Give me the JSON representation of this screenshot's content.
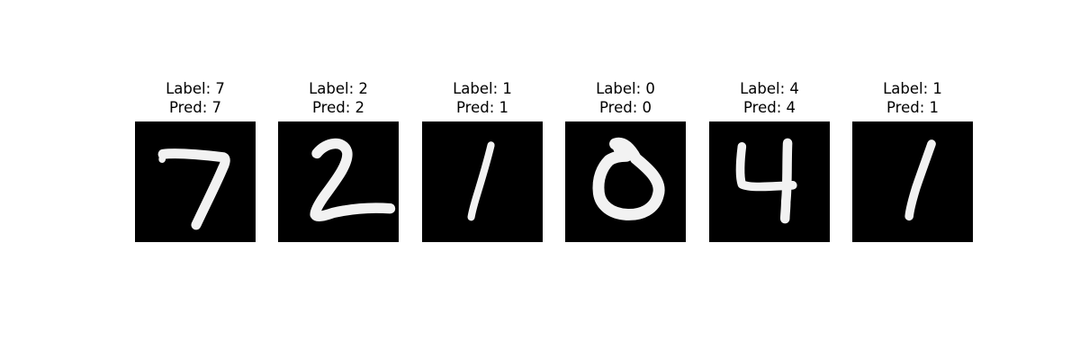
{
  "panels": [
    {
      "label_text": "Label: 7",
      "pred_text": "Pred: 7",
      "digit": "7"
    },
    {
      "label_text": "Label: 2",
      "pred_text": "Pred: 2",
      "digit": "2"
    },
    {
      "label_text": "Label: 1",
      "pred_text": "Pred: 1",
      "digit": "1"
    },
    {
      "label_text": "Label: 0",
      "pred_text": "Pred: 0",
      "digit": "0"
    },
    {
      "label_text": "Label: 4",
      "pred_text": "Pred: 4",
      "digit": "4"
    },
    {
      "label_text": "Label: 1",
      "pred_text": "Pred: 1",
      "digit": "1"
    }
  ],
  "colors": {
    "image_background": "#000000",
    "stroke": "#f2f2f2"
  }
}
